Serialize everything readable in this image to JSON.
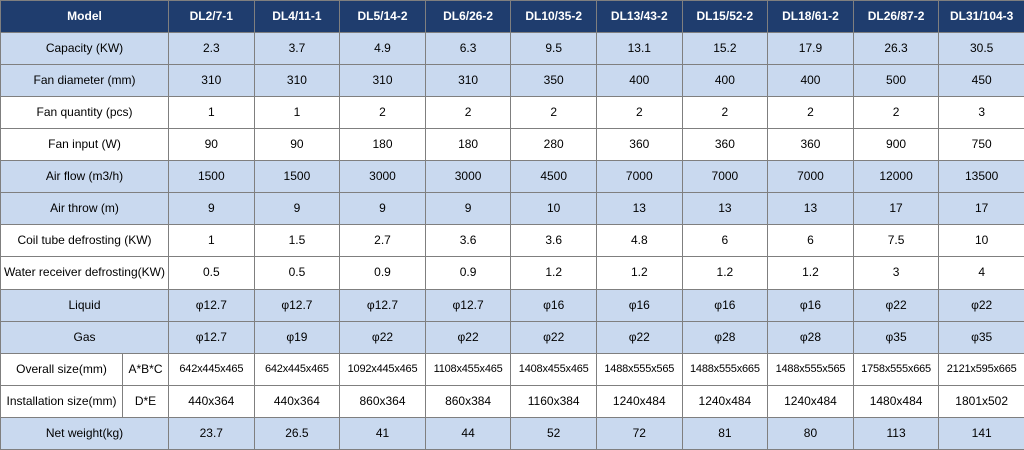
{
  "table": {
    "header": [
      "Model",
      "DL2/7-1",
      "DL4/11-1",
      "DL5/14-2",
      "DL6/26-2",
      "DL10/35-2",
      "DL13/43-2",
      "DL15/52-2",
      "DL18/61-2",
      "DL26/87-2",
      "DL31/104-3"
    ],
    "rows": [
      {
        "label": "Capacity (KW)",
        "values": [
          2.3,
          3.7,
          4.9,
          6.3,
          9.5,
          13.1,
          15.2,
          17.9,
          26.3,
          30.5
        ]
      },
      {
        "label": "Fan diameter (mm)",
        "values": [
          310,
          310,
          310,
          310,
          350,
          400,
          400,
          400,
          500,
          450
        ]
      },
      {
        "label": "Fan quantity (pcs)",
        "values": [
          1,
          1,
          2,
          2,
          2,
          2,
          2,
          2,
          2,
          3
        ]
      },
      {
        "label": "Fan input (W)",
        "values": [
          90,
          90,
          180,
          180,
          280,
          360,
          360,
          360,
          900,
          750
        ]
      },
      {
        "label": "Air flow (m3/h)",
        "values": [
          1500,
          1500,
          3000,
          3000,
          4500,
          7000,
          7000,
          7000,
          12000,
          13500
        ]
      },
      {
        "label": "Air throw (m)",
        "values": [
          9,
          9,
          9,
          9,
          10,
          13,
          13,
          13,
          17,
          17
        ]
      },
      {
        "label": "Coil tube defrosting (KW)",
        "values": [
          1,
          1.5,
          2.7,
          3.6,
          3.6,
          4.8,
          6,
          6,
          7.5,
          10
        ]
      },
      {
        "label": "Water receiver defrosting(KW)",
        "values": [
          0.5,
          0.5,
          0.9,
          0.9,
          1.2,
          1.2,
          1.2,
          1.2,
          3,
          4
        ]
      },
      {
        "label": "Liquid",
        "values": [
          "φ12.7",
          "φ12.7",
          "φ12.7",
          "φ12.7",
          "φ16",
          "φ16",
          "φ16",
          "φ16",
          "φ22",
          "φ22"
        ]
      },
      {
        "label": "Gas",
        "values": [
          "φ12.7",
          "φ19",
          "φ22",
          "φ22",
          "φ22",
          "φ22",
          "φ28",
          "φ28",
          "φ35",
          "φ35"
        ]
      },
      {
        "label": "Overall size(mm)",
        "sub": "A*B*C",
        "values": [
          "642x445x465",
          "642x445x465",
          "1092x445x465",
          "1108x455x465",
          "1408x455x465",
          "1488x555x565",
          "1488x555x665",
          "1488x555x565",
          "1758x555x665",
          "2121x595x665"
        ]
      },
      {
        "label": "Installation size(mm)",
        "sub": "D*E",
        "values": [
          "440x364",
          "440x364",
          "860x364",
          "860x384",
          "1160x384",
          "1240x484",
          "1240x484",
          "1240x484",
          "1480x484",
          "1801x502"
        ]
      },
      {
        "label": "Net weight(kg)",
        "values": [
          23.7,
          26.5,
          41,
          44,
          52,
          72,
          81,
          80,
          113,
          141
        ]
      }
    ]
  }
}
